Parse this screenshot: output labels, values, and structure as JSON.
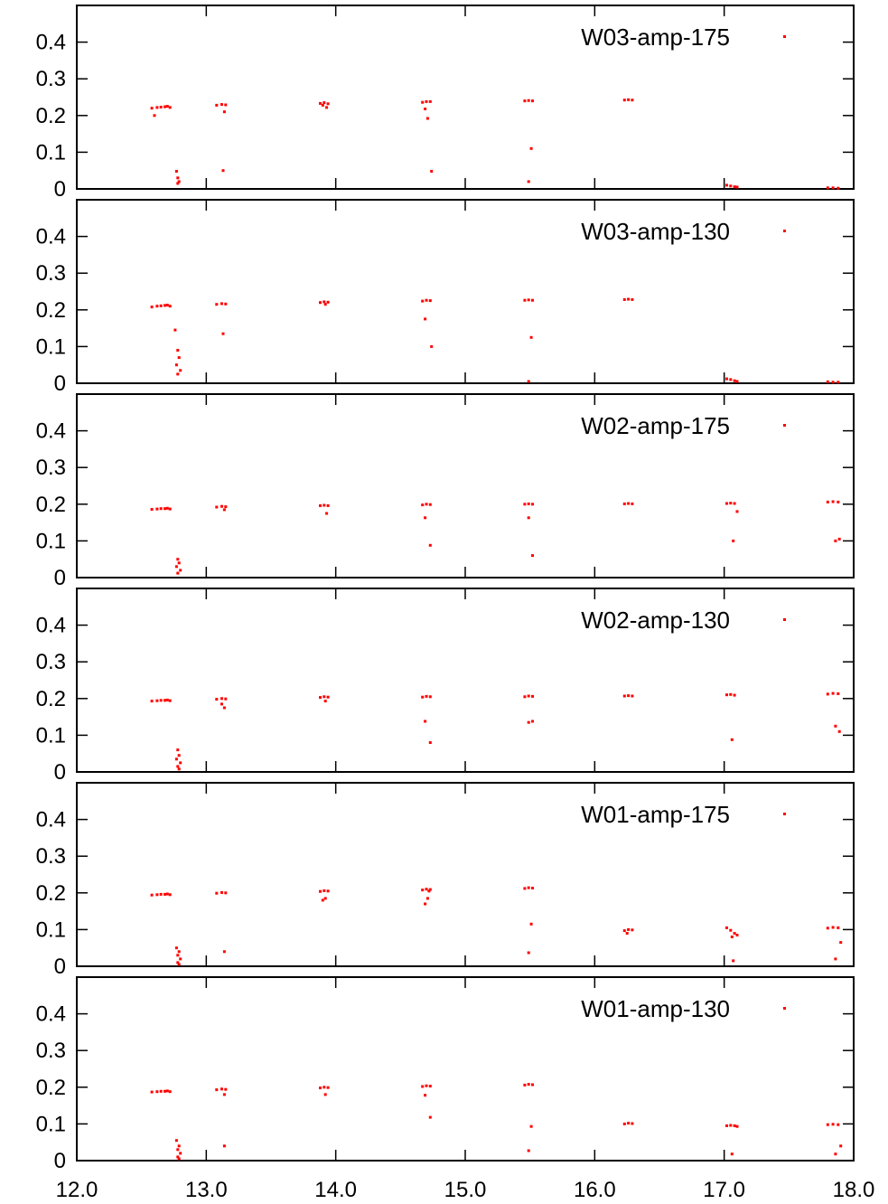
{
  "chart_data": {
    "type": "scatter",
    "xlim": [
      12.0,
      18.0
    ],
    "ylim": [
      0,
      0.5
    ],
    "x_ticks": [
      "12.0",
      "13.0",
      "14.0",
      "15.0",
      "16.0",
      "17.0",
      "18.0"
    ],
    "y_ticks": [
      "0",
      "0.1",
      "0.2",
      "0.3",
      "0.4"
    ],
    "marker_color": "#ff0000",
    "legend_position": "top-right",
    "grid": false,
    "panels": [
      {
        "name": "W03-amp-175",
        "x": [
          12.58,
          12.62,
          12.65,
          12.68,
          12.7,
          12.72,
          12.6,
          12.77,
          12.78,
          12.79,
          12.78,
          13.08,
          13.12,
          13.15,
          13.14,
          13.13,
          13.88,
          13.91,
          13.94,
          13.9,
          13.93,
          14.67,
          14.7,
          14.73,
          14.69,
          14.71,
          14.74,
          15.46,
          15.49,
          15.52,
          15.51,
          15.49,
          16.23,
          16.26,
          16.29,
          17.02,
          17.05,
          17.08,
          17.1,
          17.8,
          17.84,
          17.88
        ],
        "y": [
          0.22,
          0.222,
          0.223,
          0.224,
          0.225,
          0.222,
          0.2,
          0.048,
          0.03,
          0.02,
          0.015,
          0.228,
          0.23,
          0.229,
          0.21,
          0.05,
          0.233,
          0.235,
          0.232,
          0.228,
          0.222,
          0.236,
          0.238,
          0.238,
          0.218,
          0.192,
          0.048,
          0.24,
          0.241,
          0.24,
          0.11,
          0.02,
          0.242,
          0.243,
          0.242,
          0.01,
          0.008,
          0.006,
          0.005,
          0.003,
          0.003,
          0.002
        ]
      },
      {
        "name": "W03-amp-130",
        "x": [
          12.58,
          12.62,
          12.65,
          12.68,
          12.7,
          12.72,
          12.76,
          12.78,
          12.79,
          12.77,
          12.8,
          12.78,
          13.08,
          13.12,
          13.15,
          13.13,
          13.88,
          13.91,
          13.94,
          13.92,
          14.67,
          14.7,
          14.73,
          14.69,
          14.74,
          15.46,
          15.49,
          15.52,
          15.51,
          15.49,
          16.23,
          16.26,
          16.29,
          17.02,
          17.05,
          17.08,
          17.1,
          17.8,
          17.84,
          17.88
        ],
        "y": [
          0.208,
          0.21,
          0.211,
          0.212,
          0.213,
          0.21,
          0.145,
          0.09,
          0.07,
          0.05,
          0.035,
          0.025,
          0.215,
          0.217,
          0.216,
          0.135,
          0.22,
          0.222,
          0.221,
          0.215,
          0.224,
          0.226,
          0.225,
          0.175,
          0.1,
          0.226,
          0.227,
          0.226,
          0.125,
          0.005,
          0.228,
          0.229,
          0.228,
          0.012,
          0.01,
          0.007,
          0.005,
          0.004,
          0.003,
          0.003
        ]
      },
      {
        "name": "W02-amp-175",
        "x": [
          12.58,
          12.62,
          12.65,
          12.68,
          12.7,
          12.72,
          12.78,
          12.79,
          12.77,
          12.8,
          12.78,
          13.08,
          13.12,
          13.15,
          13.14,
          13.88,
          13.91,
          13.94,
          13.93,
          14.67,
          14.7,
          14.73,
          14.69,
          14.73,
          15.46,
          15.49,
          15.52,
          15.49,
          15.52,
          16.23,
          16.26,
          16.29,
          17.02,
          17.05,
          17.08,
          17.07,
          17.1,
          17.8,
          17.84,
          17.88,
          17.86,
          17.89
        ],
        "y": [
          0.186,
          0.187,
          0.188,
          0.188,
          0.189,
          0.187,
          0.05,
          0.04,
          0.03,
          0.02,
          0.012,
          0.192,
          0.194,
          0.193,
          0.185,
          0.196,
          0.197,
          0.196,
          0.175,
          0.198,
          0.2,
          0.199,
          0.163,
          0.088,
          0.2,
          0.201,
          0.2,
          0.163,
          0.06,
          0.201,
          0.202,
          0.201,
          0.202,
          0.203,
          0.202,
          0.1,
          0.18,
          0.206,
          0.207,
          0.206,
          0.1,
          0.105
        ]
      },
      {
        "name": "W02-amp-130",
        "x": [
          12.58,
          12.62,
          12.65,
          12.68,
          12.7,
          12.72,
          12.78,
          12.79,
          12.77,
          12.8,
          12.78,
          12.79,
          13.08,
          13.12,
          13.15,
          13.12,
          13.14,
          13.88,
          13.91,
          13.94,
          13.92,
          14.67,
          14.7,
          14.73,
          14.69,
          14.73,
          15.46,
          15.49,
          15.52,
          15.49,
          15.52,
          16.23,
          16.26,
          16.29,
          17.02,
          17.05,
          17.08,
          17.06,
          17.8,
          17.84,
          17.88,
          17.86,
          17.89
        ],
        "y": [
          0.193,
          0.194,
          0.195,
          0.195,
          0.196,
          0.194,
          0.06,
          0.045,
          0.035,
          0.025,
          0.015,
          0.008,
          0.198,
          0.2,
          0.199,
          0.185,
          0.175,
          0.203,
          0.205,
          0.204,
          0.193,
          0.204,
          0.206,
          0.205,
          0.138,
          0.08,
          0.205,
          0.207,
          0.206,
          0.135,
          0.138,
          0.207,
          0.208,
          0.207,
          0.21,
          0.211,
          0.209,
          0.088,
          0.212,
          0.214,
          0.213,
          0.125,
          0.11
        ]
      },
      {
        "name": "W01-amp-175",
        "x": [
          12.58,
          12.62,
          12.65,
          12.68,
          12.7,
          12.72,
          12.77,
          12.79,
          12.78,
          12.8,
          12.78,
          12.79,
          13.08,
          13.12,
          13.15,
          13.14,
          13.88,
          13.91,
          13.94,
          13.92,
          13.9,
          14.67,
          14.7,
          14.73,
          14.69,
          14.71,
          14.72,
          15.46,
          15.49,
          15.52,
          15.51,
          15.49,
          16.23,
          16.26,
          16.29,
          16.25,
          17.02,
          17.05,
          17.08,
          17.1,
          17.06,
          17.07,
          17.8,
          17.84,
          17.88,
          17.9,
          17.86
        ],
        "y": [
          0.194,
          0.195,
          0.196,
          0.196,
          0.197,
          0.195,
          0.05,
          0.04,
          0.03,
          0.02,
          0.01,
          0.005,
          0.199,
          0.201,
          0.2,
          0.04,
          0.204,
          0.206,
          0.205,
          0.185,
          0.18,
          0.208,
          0.21,
          0.209,
          0.17,
          0.185,
          0.205,
          0.212,
          0.214,
          0.213,
          0.115,
          0.037,
          0.097,
          0.1,
          0.099,
          0.09,
          0.105,
          0.098,
          0.09,
          0.085,
          0.08,
          0.015,
          0.104,
          0.106,
          0.105,
          0.065,
          0.02
        ]
      },
      {
        "name": "W01-amp-130",
        "x": [
          12.58,
          12.62,
          12.65,
          12.68,
          12.7,
          12.72,
          12.77,
          12.79,
          12.78,
          12.8,
          12.78,
          12.79,
          13.08,
          13.12,
          13.15,
          13.14,
          13.14,
          13.88,
          13.91,
          13.94,
          13.92,
          14.67,
          14.7,
          14.73,
          14.69,
          14.73,
          15.46,
          15.49,
          15.52,
          15.51,
          15.49,
          16.23,
          16.26,
          16.29,
          17.02,
          17.05,
          17.08,
          17.1,
          17.06,
          17.8,
          17.84,
          17.88,
          17.9,
          17.86
        ],
        "y": [
          0.187,
          0.188,
          0.189,
          0.189,
          0.19,
          0.188,
          0.055,
          0.04,
          0.03,
          0.02,
          0.01,
          0.005,
          0.193,
          0.195,
          0.194,
          0.18,
          0.04,
          0.198,
          0.2,
          0.199,
          0.18,
          0.202,
          0.204,
          0.203,
          0.178,
          0.118,
          0.206,
          0.208,
          0.207,
          0.093,
          0.027,
          0.1,
          0.102,
          0.101,
          0.095,
          0.096,
          0.095,
          0.093,
          0.018,
          0.098,
          0.099,
          0.098,
          0.04,
          0.018
        ]
      }
    ]
  }
}
